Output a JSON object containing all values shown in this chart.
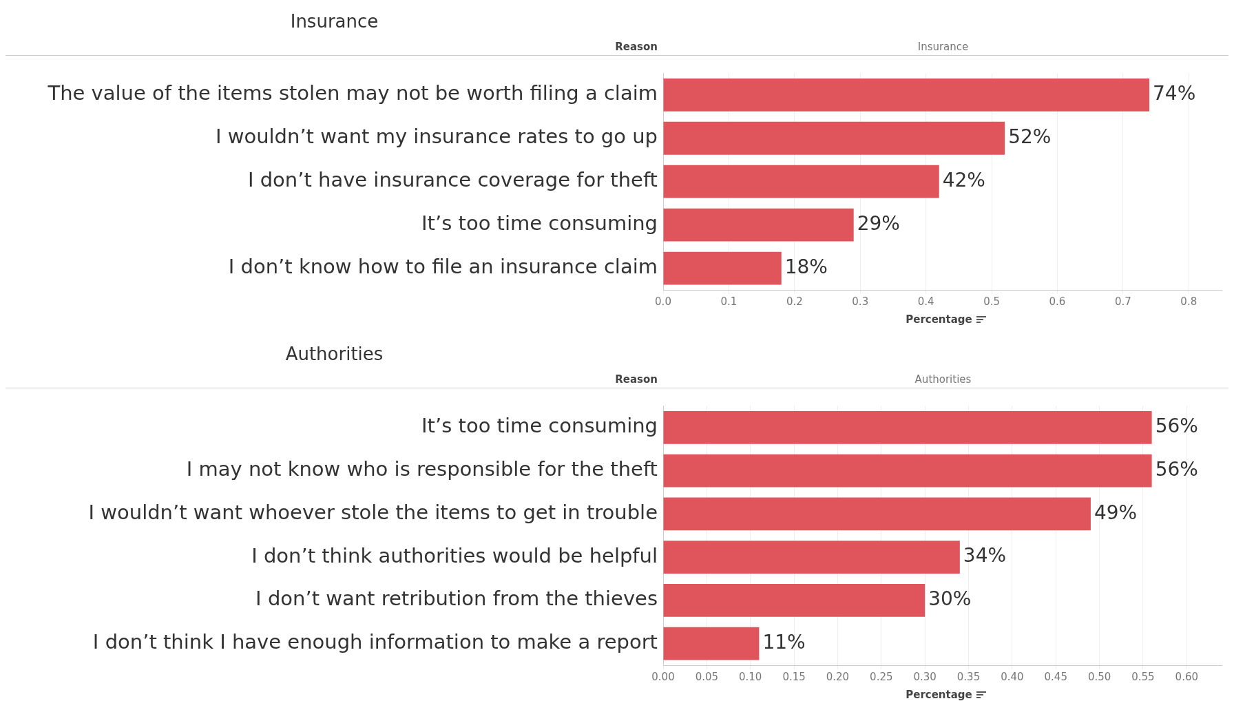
{
  "chart_data": [
    {
      "type": "bar",
      "orientation": "horizontal",
      "title": "Insurance",
      "subtitle": "Insurance",
      "ylabel": "Reason",
      "xlabel": "Percentage",
      "grid": "x",
      "legend": false,
      "categories": [
        "The value of the items stolen may not be worth filing a claim",
        "I wouldn’t want my insurance rates to go up",
        "I don’t have insurance coverage for theft",
        "It’s too time consuming",
        "I don’t know how to file an insurance claim"
      ],
      "values": [
        0.74,
        0.52,
        0.42,
        0.29,
        0.18
      ],
      "value_labels": [
        "74%",
        "52%",
        "42%",
        "29%",
        "18%"
      ],
      "color": "#e0555b",
      "xlim": [
        0,
        0.85
      ],
      "xticks": [
        {
          "value": 0,
          "label": "0.0"
        },
        {
          "value": 0.1,
          "label": "0.1"
        },
        {
          "value": 0.2,
          "label": "0.2"
        },
        {
          "value": 0.3,
          "label": "0.3"
        },
        {
          "value": 0.4,
          "label": "0.4"
        },
        {
          "value": 0.5,
          "label": "0.5"
        },
        {
          "value": 0.6,
          "label": "0.6"
        },
        {
          "value": 0.7,
          "label": "0.7"
        },
        {
          "value": 0.8,
          "label": "0.8"
        }
      ]
    },
    {
      "type": "bar",
      "orientation": "horizontal",
      "title": "Authorities",
      "subtitle": "Authorities",
      "ylabel": "Reason",
      "xlabel": "Percentage",
      "grid": "x",
      "legend": false,
      "categories": [
        "It’s too time consuming",
        "I may not know who is responsible for the theft",
        "I wouldn’t want whoever stole the items to get in trouble",
        "I don’t think authorities would be helpful",
        "I don’t want retribution from the thieves",
        "I don’t think I have enough information to make a report"
      ],
      "values": [
        0.56,
        0.56,
        0.49,
        0.34,
        0.3,
        0.11
      ],
      "value_labels": [
        "56%",
        "56%",
        "49%",
        "34%",
        "30%",
        "11%"
      ],
      "color": "#e0555b",
      "xlim": [
        0,
        0.64
      ],
      "xticks": [
        {
          "value": 0,
          "label": "0.00"
        },
        {
          "value": 0.05,
          "label": "0.05"
        },
        {
          "value": 0.1,
          "label": "0.10"
        },
        {
          "value": 0.15,
          "label": "0.15"
        },
        {
          "value": 0.2,
          "label": "0.20"
        },
        {
          "value": 0.25,
          "label": "0.25"
        },
        {
          "value": 0.3,
          "label": "0.30"
        },
        {
          "value": 0.35,
          "label": "0.35"
        },
        {
          "value": 0.4,
          "label": "0.40"
        },
        {
          "value": 0.45,
          "label": "0.45"
        },
        {
          "value": 0.5,
          "label": "0.50"
        },
        {
          "value": 0.55,
          "label": "0.55"
        },
        {
          "value": 0.6,
          "label": "0.60"
        }
      ]
    }
  ]
}
